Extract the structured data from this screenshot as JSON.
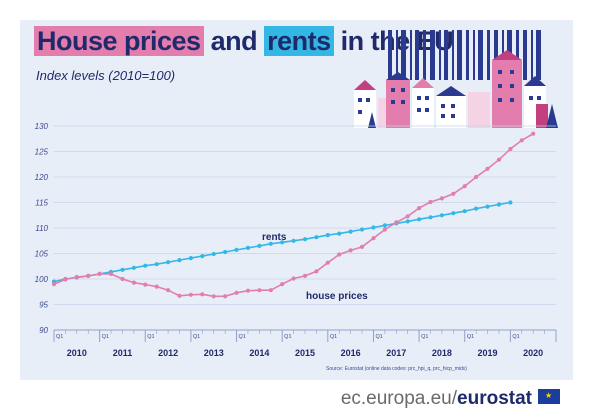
{
  "title": {
    "part1": "House prices",
    "part2": "and",
    "part3": "rents",
    "part4": "in the EU"
  },
  "subtitle": "Index levels (2010=100)",
  "source": "Source: Eurostat (online data codes: prc_hpi_q, prc_hicp_midx)",
  "footer": {
    "site": "ec.europa.eu/",
    "brand": "eurostat"
  },
  "colors": {
    "rents": "#33b8e6",
    "house_prices": "#e37dae",
    "navy": "#1f2a6b"
  },
  "chart_data": {
    "type": "line",
    "ylim": [
      90,
      130
    ],
    "yticks": [
      90,
      95,
      100,
      105,
      110,
      115,
      120,
      125,
      130
    ],
    "years": [
      "2010",
      "2011",
      "2012",
      "2013",
      "2014",
      "2015",
      "2016",
      "2017",
      "2018",
      "2019",
      "2020"
    ],
    "quarter_label": "Q1",
    "grid": true,
    "series": [
      {
        "name": "rents",
        "values": [
          99.5,
          100.0,
          100.3,
          100.6,
          101.0,
          101.4,
          101.8,
          102.2,
          102.6,
          102.9,
          103.3,
          103.7,
          104.1,
          104.5,
          104.9,
          105.3,
          105.7,
          106.1,
          106.5,
          106.9,
          107.2,
          107.5,
          107.8,
          108.2,
          108.6,
          108.9,
          109.3,
          109.7,
          110.1,
          110.5,
          110.9,
          111.3,
          111.7,
          112.1,
          112.5,
          112.9,
          113.3,
          113.8,
          114.2,
          114.6,
          115.0
        ]
      },
      {
        "name": "house prices",
        "values": [
          99.0,
          99.9,
          100.4,
          100.6,
          101.0,
          101.0,
          100.0,
          99.3,
          98.9,
          98.5,
          97.8,
          96.7,
          96.9,
          97.0,
          96.6,
          96.6,
          97.3,
          97.7,
          97.8,
          97.8,
          99.0,
          100.1,
          100.6,
          101.5,
          103.2,
          104.8,
          105.6,
          106.3,
          108.0,
          109.7,
          111.1,
          112.3,
          113.9,
          115.1,
          115.8,
          116.7,
          118.2,
          120.0,
          121.6,
          123.4,
          125.5,
          127.2,
          128.5
        ]
      }
    ]
  }
}
